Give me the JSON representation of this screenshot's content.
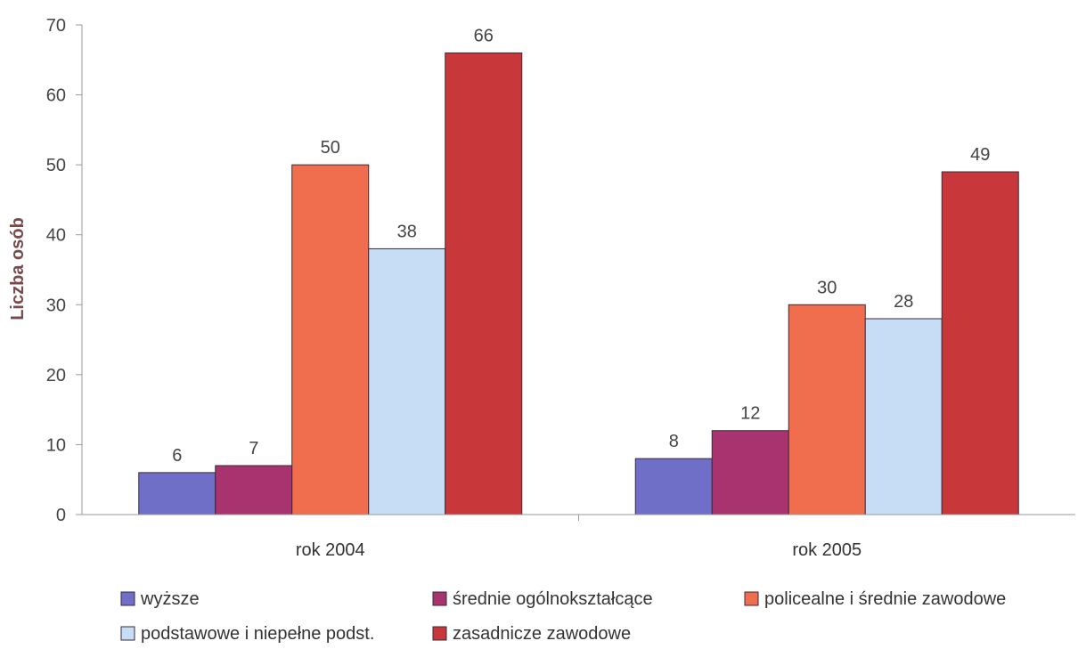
{
  "chart_data": {
    "type": "bar",
    "categories": [
      "rok 2004",
      "rok 2005"
    ],
    "series": [
      {
        "name": "wyższe",
        "color": "#6f6fc8",
        "values": [
          6,
          8
        ]
      },
      {
        "name": "średnie ogólnokształcące",
        "color": "#a8336e",
        "values": [
          7,
          12
        ]
      },
      {
        "name": "policealne i średnie zawodowe",
        "color": "#f06e4e",
        "values": [
          50,
          30
        ]
      },
      {
        "name": "podstawowe i niepełne podst.",
        "color": "#c6ddf5",
        "values": [
          38,
          28
        ]
      },
      {
        "name": "zasadnicze zawodowe",
        "color": "#c8383a",
        "values": [
          66,
          49
        ]
      }
    ],
    "ylabel": "Liczba osób",
    "xlabel": "",
    "ylim": [
      0,
      70
    ],
    "yticks": [
      "0",
      "10",
      "20",
      "30",
      "40",
      "50",
      "60",
      "70"
    ],
    "grid": false,
    "legend_position": "bottom"
  }
}
